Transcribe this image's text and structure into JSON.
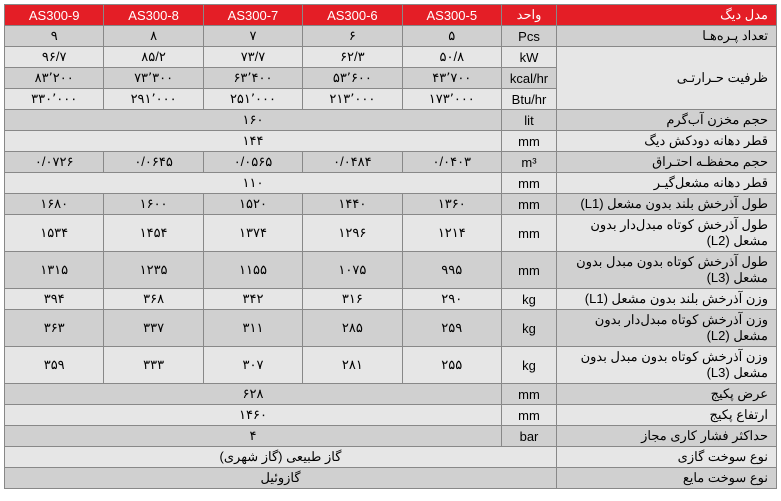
{
  "headers": [
    "AS300-9",
    "AS300-8",
    "AS300-7",
    "AS300-6",
    "AS300-5",
    "واحد",
    "مدل دیگ"
  ],
  "rows": [
    {
      "c": [
        "۹",
        "۸",
        "۷",
        "۶",
        "۵"
      ],
      "u": "Pcs",
      "p": "تعداد پـره‌هـا",
      "rs": 1
    },
    {
      "c": [
        "۹۶/۷",
        "۸۵/۲",
        "۷۳/۷",
        "۶۲/۳",
        "۵۰/۸"
      ],
      "u": "kW",
      "p": "ظرفیت حـرارتـی",
      "rs": 3
    },
    {
      "c": [
        "۸۳٬۲۰۰",
        "۷۳٬۳۰۰",
        "۶۳٬۴۰۰",
        "۵۳٬۶۰۰",
        "۴۳٬۷۰۰"
      ],
      "u": "kcal/hr"
    },
    {
      "c": [
        "۳۳۰٬۰۰۰",
        "۲۹۱٬۰۰۰",
        "۲۵۱٬۰۰۰",
        "۲۱۳٬۰۰۰",
        "۱۷۳٬۰۰۰"
      ],
      "u": "Btu/hr"
    },
    {
      "span": "۱۶۰",
      "u": "lit",
      "p": "حجم مخزن آب‌گرم"
    },
    {
      "span": "۱۴۴",
      "u": "mm",
      "p": "قطر دهانه دودکش دیگ"
    },
    {
      "c": [
        "۰/۰۷۲۶",
        "۰/۰۶۴۵",
        "۰/۰۵۶۵",
        "۰/۰۴۸۴",
        "۰/۰۴۰۳"
      ],
      "u": "m³",
      "p": "حجم محفظـه احتـراق"
    },
    {
      "span": "۱۱۰",
      "u": "mm",
      "p": "قطر دهانه مشعل‌گیـر"
    },
    {
      "c": [
        "۱۶۸۰",
        "۱۶۰۰",
        "۱۵۲۰",
        "۱۴۴۰",
        "۱۳۶۰"
      ],
      "u": "mm",
      "p": "طول آذرخش بلند بدون مشعل (L1)"
    },
    {
      "c": [
        "۱۵۳۴",
        "۱۴۵۴",
        "۱۳۷۴",
        "۱۲۹۶",
        "۱۲۱۴"
      ],
      "u": "mm",
      "p": "طول آذرخش کوتاه مبدل‌دار بدون مشعل (L2)"
    },
    {
      "c": [
        "۱۳۱۵",
        "۱۲۳۵",
        "۱۱۵۵",
        "۱۰۷۵",
        "۹۹۵"
      ],
      "u": "mm",
      "p": "طول آذرخش کوتاه بدون مبدل بدون مشعل (L3)"
    },
    {
      "c": [
        "۳۹۴",
        "۳۶۸",
        "۳۴۲",
        "۳۱۶",
        "۲۹۰"
      ],
      "u": "kg",
      "p": "وزن آذرخش بلند بدون مشعل (L1)"
    },
    {
      "c": [
        "۳۶۳",
        "۳۳۷",
        "۳۱۱",
        "۲۸۵",
        "۲۵۹"
      ],
      "u": "kg",
      "p": "وزن آذرخش کوتاه مبدل‌دار بدون مشعل (L2)"
    },
    {
      "c": [
        "۳۵۹",
        "۳۳۳",
        "۳۰۷",
        "۲۸۱",
        "۲۵۵"
      ],
      "u": "kg",
      "p": "وزن آذرخش کوتاه بدون مبدل بدون مشعل (L3)"
    },
    {
      "span": "۶۲۸",
      "u": "mm",
      "p": "عرض پکیج"
    },
    {
      "span": "۱۴۶۰",
      "u": "mm",
      "p": "ارتفاع پکیج"
    },
    {
      "span": "۴",
      "u": "bar",
      "p": "حداکثر فشار کاری مجاز"
    },
    {
      "span6": "گاز طبیعی (گاز شهری)",
      "p": "نوع سوخت گازی"
    },
    {
      "span6": "گازوئیل",
      "p": "نوع سوخت مایع"
    }
  ]
}
